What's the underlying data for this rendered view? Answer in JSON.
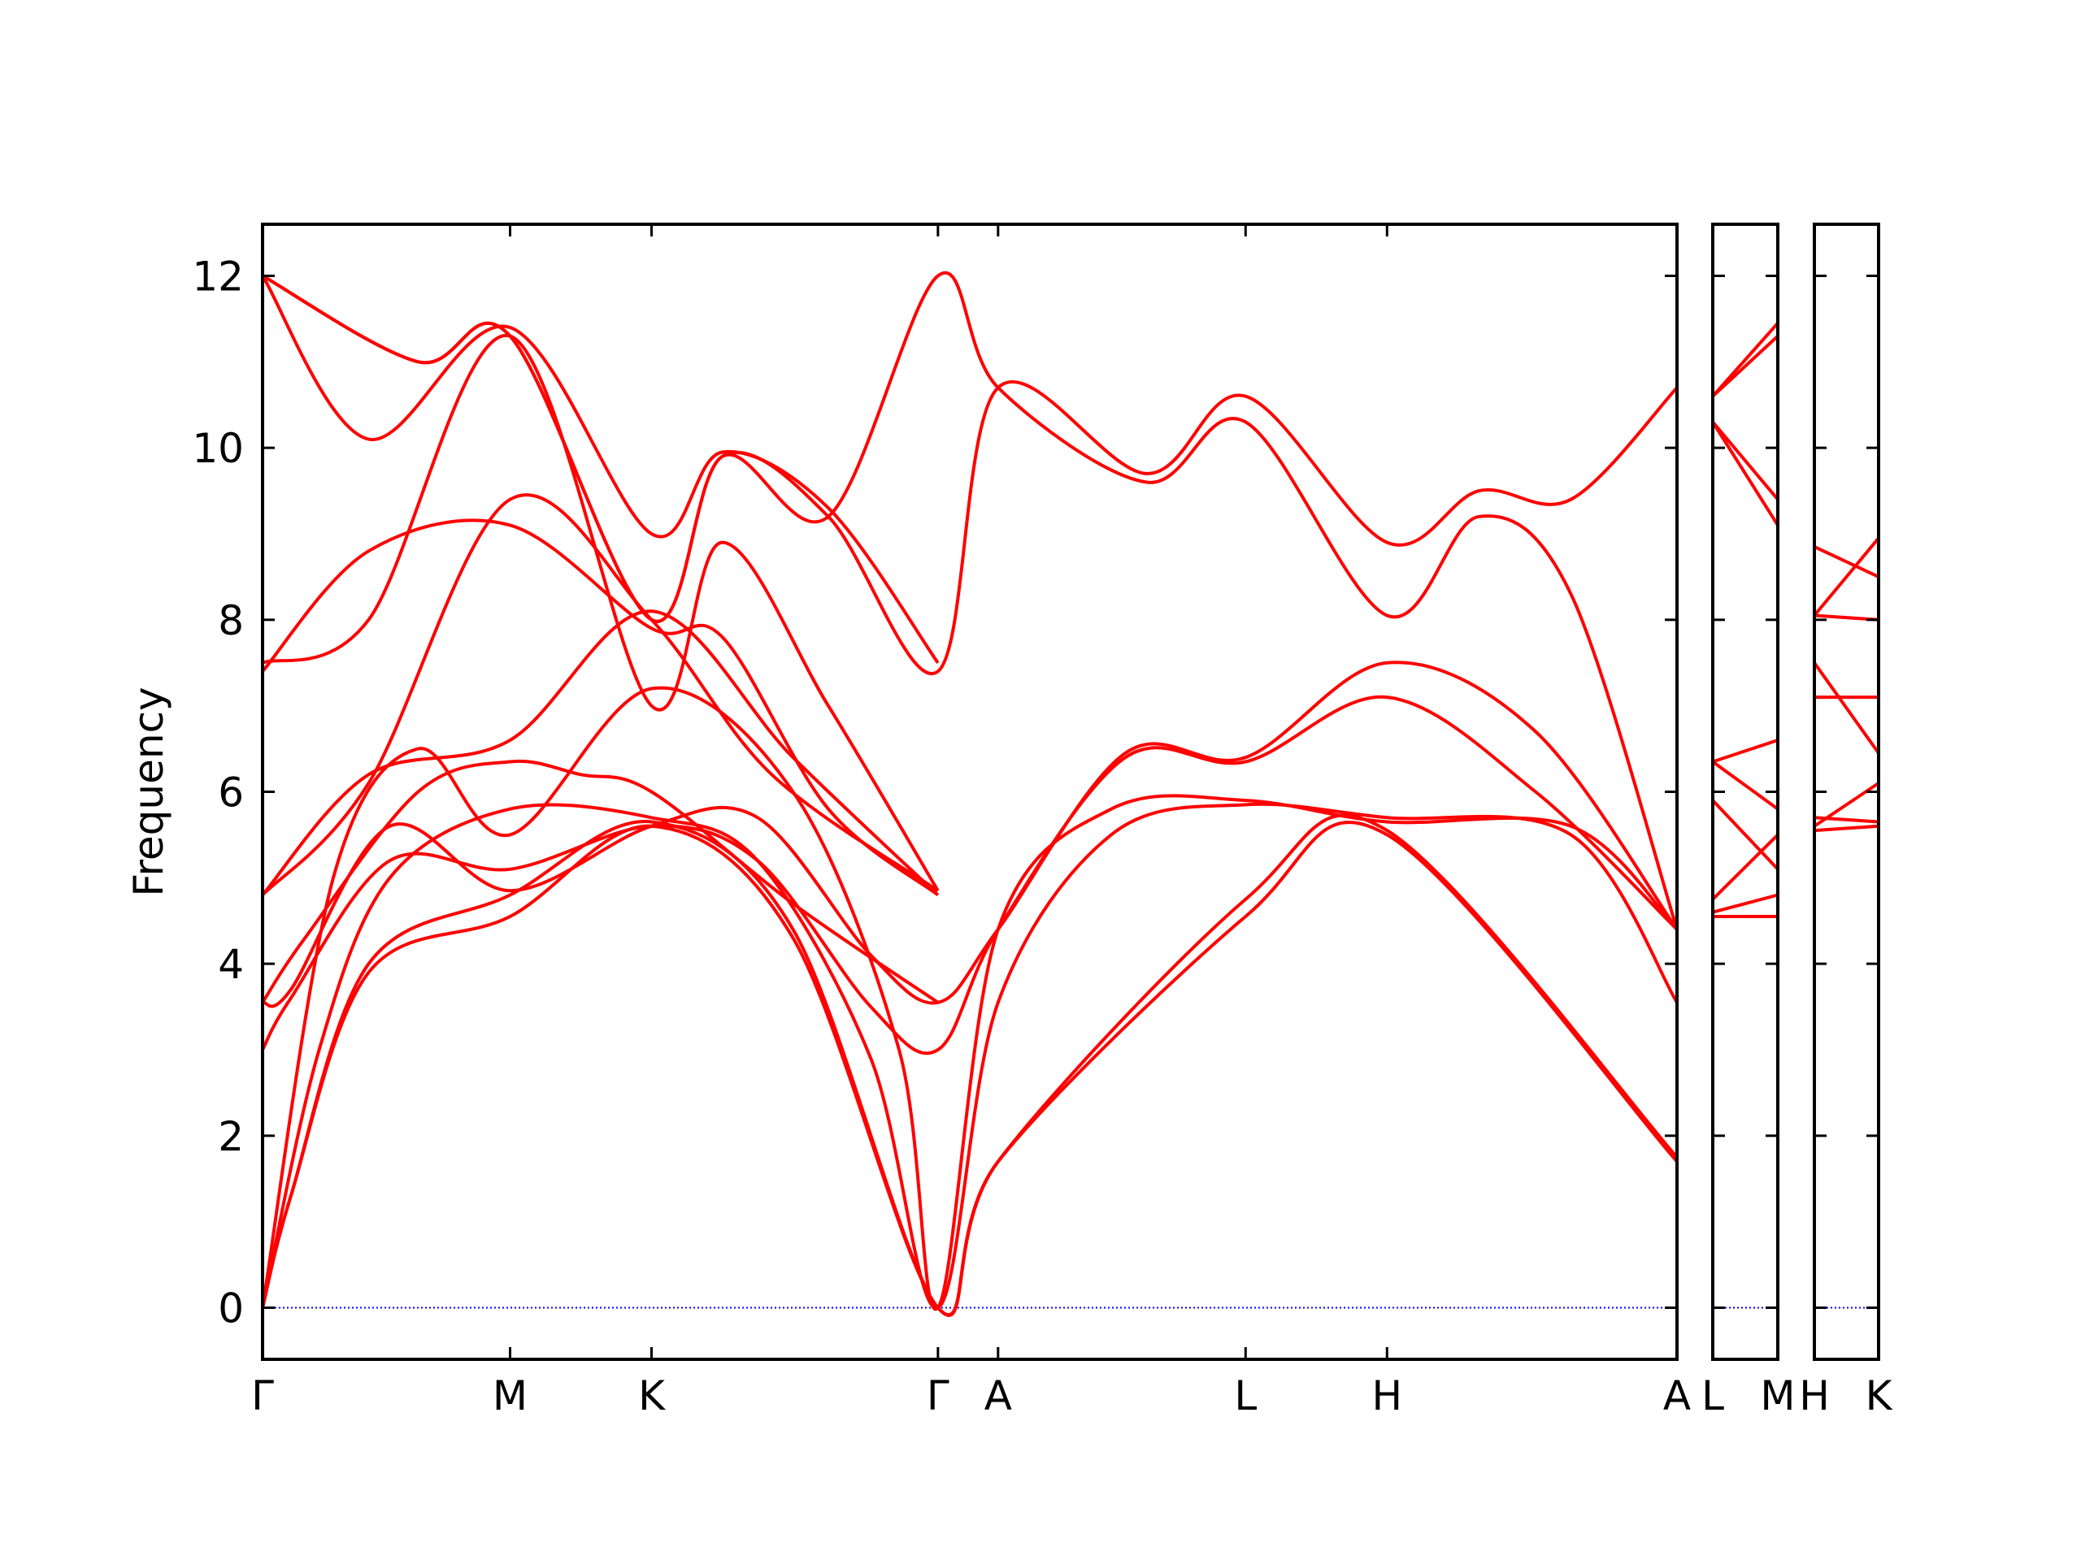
{
  "chart_data": {
    "type": "line",
    "title": "",
    "xlabel": "",
    "ylabel": "Frequency",
    "ylim": [
      -0.6,
      12.6
    ],
    "yticks": [
      0,
      2,
      4,
      6,
      8,
      10,
      12
    ],
    "grid": false,
    "legend": "none",
    "colors": {
      "band": "#ff0000",
      "zero_line": "#0000ff",
      "axis": "#000000"
    },
    "panels": [
      {
        "xlim": [
          0,
          20
        ],
        "ticks": [
          {
            "x": 0,
            "label": "Γ"
          },
          {
            "x": 3.5,
            "label": "M"
          },
          {
            "x": 5.5,
            "label": "K"
          },
          {
            "x": 9.55,
            "label": "Γ"
          },
          {
            "x": 10.4,
            "label": "A"
          },
          {
            "x": 13.9,
            "label": "L"
          },
          {
            "x": 15.9,
            "label": "H"
          },
          {
            "x": 20,
            "label": "A"
          }
        ],
        "series": [
          {
            "x": [
              0,
              0.4,
              1.5,
              3.5,
              5.5,
              7.5,
              9.55,
              10.4,
              13.9,
              15.9,
              20
            ],
            "y": [
              0,
              1.3,
              3.9,
              4.55,
              5.6,
              4.3,
              0,
              1.7,
              4.55,
              5.5,
              1.7
            ]
          },
          {
            "x": [
              0,
              0.4,
              1.5,
              3.5,
              5.5,
              7.5,
              9.55,
              10.4,
              13.9,
              15.9,
              20
            ],
            "y": [
              0,
              1.3,
              4.0,
              4.8,
              5.65,
              4.4,
              0,
              1.7,
              4.75,
              5.55,
              1.75
            ]
          },
          {
            "x": [
              0,
              0.8,
              1.8,
              3.5,
              5.5,
              7.0,
              8.6,
              9.55,
              10.4,
              12.0,
              13.9,
              15.9,
              18.5,
              20
            ],
            "y": [
              0,
              3.0,
              5.0,
              5.8,
              5.7,
              5.2,
              2.9,
              0,
              3.55,
              5.5,
              5.85,
              5.7,
              5.5,
              3.55
            ]
          },
          {
            "x": [
              0,
              1.0,
              2.2,
              3.5,
              5.5,
              7.5,
              9.0,
              9.55,
              10.4,
              12.0,
              13.9,
              15.9,
              18.5,
              20
            ],
            "y": [
              0,
              5.0,
              6.5,
              5.5,
              7.2,
              6.0,
              3.0,
              0,
              4.4,
              5.8,
              5.9,
              5.65,
              5.6,
              4.4
            ]
          },
          {
            "x": [
              0,
              0.4,
              1.8,
              3.5,
              5.5,
              7.0,
              8.6,
              9.55,
              10.4,
              12.2,
              13.9,
              15.9,
              18.0,
              20
            ],
            "y": [
              3.0,
              3.6,
              5.2,
              5.1,
              5.6,
              5.2,
              3.5,
              3.0,
              4.4,
              6.4,
              6.35,
              7.1,
              6.0,
              4.4
            ]
          },
          {
            "x": [
              0,
              0.4,
              1.8,
              3.5,
              5.5,
              7.0,
              8.6,
              9.55,
              10.4,
              12.2,
              13.9,
              15.9,
              18.0,
              20
            ],
            "y": [
              3.55,
              3.7,
              5.6,
              4.85,
              5.6,
              5.7,
              4.1,
              3.55,
              4.4,
              6.45,
              6.4,
              7.5,
              6.7,
              4.4
            ]
          },
          {
            "x": [
              0,
              0.6,
              2.2,
              3.5,
              4.5,
              5.5,
              7.5,
              9.55
            ],
            "y": [
              3.55,
              4.3,
              6.0,
              6.35,
              6.2,
              6.0,
              4.7,
              3.55
            ]
          },
          {
            "x": [
              0,
              1.5,
              3.5,
              5.5,
              7.5,
              9.55
            ],
            "y": [
              4.8,
              6.2,
              6.6,
              8.1,
              6.4,
              4.8
            ]
          },
          {
            "x": [
              0,
              1.5,
              3.5,
              5.5,
              7.2,
              9.55
            ],
            "y": [
              4.8,
              6.1,
              9.4,
              8.0,
              6.2,
              4.85
            ]
          },
          {
            "x": [
              0,
              1.5,
              3.5,
              5.5,
              6.5,
              8.0,
              9.55
            ],
            "y": [
              7.4,
              8.8,
              9.1,
              7.9,
              7.8,
              5.8,
              4.8
            ]
          },
          {
            "x": [
              0,
              1.5,
              3.5,
              5.5,
              6.5,
              8.0,
              9.55
            ],
            "y": [
              7.5,
              8.0,
              11.3,
              7.0,
              8.9,
              7.0,
              4.85
            ]
          },
          {
            "x": [
              0,
              1.5,
              3.5,
              5.5,
              6.5,
              8.0,
              9.55
            ],
            "y": [
              12.0,
              10.1,
              11.4,
              9.0,
              9.95,
              9.3,
              7.5
            ]
          },
          {
            "x": [
              0,
              2.2,
              3.5,
              5.5,
              6.5,
              8.0,
              9.55,
              10.4,
              12.5,
              13.9,
              15.9,
              17.2,
              18.5,
              20
            ],
            "y": [
              12.0,
              11.0,
              11.3,
              8.0,
              9.9,
              9.2,
              7.4,
              10.7,
              9.7,
              10.6,
              8.9,
              9.5,
              9.4,
              10.7
            ]
          },
          {
            "x": [
              0,
              2.2,
              3.5,
              5.5,
              6.5,
              8.0,
              9.55,
              10.4,
              12.5,
              13.9,
              15.9,
              17.2,
              18.5,
              20
            ],
            "y": [
              12.0,
              11.0,
              11.3,
              8.0,
              9.9,
              9.2,
              12.0,
              10.7,
              9.6,
              10.3,
              8.05,
              9.2,
              8.3,
              4.4
            ]
          }
        ]
      },
      {
        "xlim": [
          0,
          1
        ],
        "ticks": [
          {
            "x": 0,
            "label": "L"
          },
          {
            "x": 1,
            "label": "M"
          }
        ],
        "series": [
          {
            "x": [
              0,
              1
            ],
            "y": [
              4.55,
              4.55
            ]
          },
          {
            "x": [
              0,
              1
            ],
            "y": [
              4.6,
              4.8
            ]
          },
          {
            "x": [
              0,
              1
            ],
            "y": [
              4.75,
              5.5
            ]
          },
          {
            "x": [
              0,
              1
            ],
            "y": [
              5.9,
              5.1
            ]
          },
          {
            "x": [
              0,
              1
            ],
            "y": [
              6.35,
              5.8
            ]
          },
          {
            "x": [
              0,
              1
            ],
            "y": [
              6.35,
              6.6
            ]
          },
          {
            "x": [
              0,
              1
            ],
            "y": [
              10.3,
              9.1
            ]
          },
          {
            "x": [
              0,
              1
            ],
            "y": [
              10.3,
              9.4
            ]
          },
          {
            "x": [
              0,
              1
            ],
            "y": [
              10.6,
              11.3
            ]
          },
          {
            "x": [
              0,
              1
            ],
            "y": [
              10.6,
              11.45
            ]
          }
        ]
      },
      {
        "xlim": [
          0,
          1
        ],
        "ticks": [
          {
            "x": 0,
            "label": "H"
          },
          {
            "x": 1,
            "label": "K"
          }
        ],
        "series": [
          {
            "x": [
              0,
              1
            ],
            "y": [
              5.55,
              5.6
            ]
          },
          {
            "x": [
              0,
              1
            ],
            "y": [
              5.6,
              6.1
            ]
          },
          {
            "x": [
              0,
              1
            ],
            "y": [
              5.7,
              5.65
            ]
          },
          {
            "x": [
              0,
              1
            ],
            "y": [
              7.1,
              7.1
            ]
          },
          {
            "x": [
              0,
              1
            ],
            "y": [
              7.5,
              6.45
            ]
          },
          {
            "x": [
              0,
              1
            ],
            "y": [
              8.05,
              8.0
            ]
          },
          {
            "x": [
              0,
              1
            ],
            "y": [
              8.05,
              8.95
            ]
          },
          {
            "x": [
              0,
              1
            ],
            "y": [
              8.85,
              8.5
            ]
          }
        ]
      }
    ]
  }
}
